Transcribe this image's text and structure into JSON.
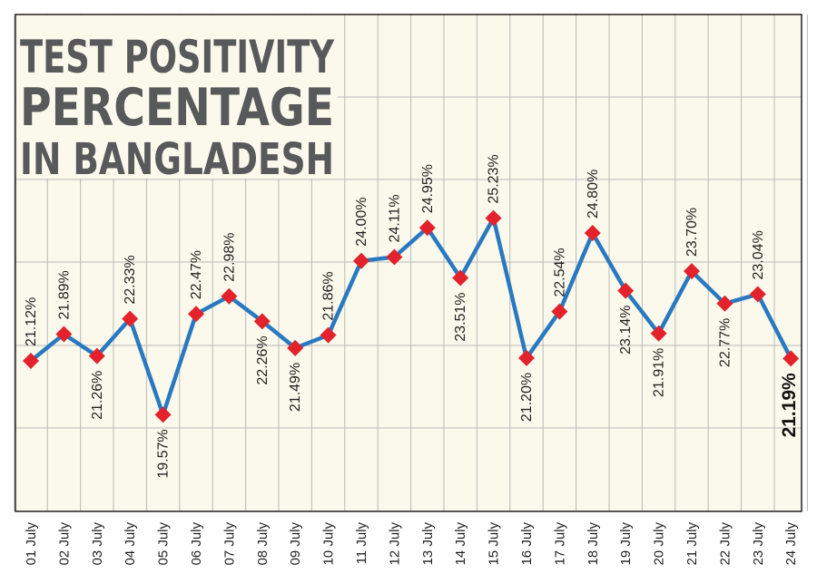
{
  "chart_data": {
    "type": "line",
    "title": [
      "TEST POSITIVITY",
      "PERCENTAGE",
      "IN BANGLADESH"
    ],
    "xlabel": "",
    "ylabel": "",
    "categories": [
      "01 July",
      "02 July",
      "03 July",
      "04 July",
      "05 July",
      "06 July",
      "07 July",
      "08 July",
      "09 July",
      "10 July",
      "11 July",
      "12 July",
      "13 July",
      "14 July",
      "15 July",
      "16 July",
      "17 July",
      "18 July",
      "19 July",
      "20 July",
      "21 July",
      "22 July",
      "23 July",
      "24 July"
    ],
    "series": [
      {
        "values": [
          21.12,
          21.89,
          21.26,
          22.33,
          19.57,
          22.47,
          22.98,
          22.26,
          21.49,
          21.86,
          24.0,
          24.11,
          24.95,
          23.51,
          25.23,
          21.2,
          22.54,
          24.8,
          23.14,
          21.91,
          23.7,
          22.77,
          23.04,
          21.19
        ],
        "labels": [
          "21.12%",
          "21.89%",
          "21.26%",
          "22.33%",
          "19.57%",
          "22.47%",
          "22.98%",
          "22.26%",
          "21.49%",
          "21.86%",
          "24.00%",
          "24.11%",
          "24.95%",
          "23.51%",
          "25.23%",
          "21.20%",
          "22.54%",
          "24.80%",
          "23.14%",
          "21.91%",
          "23.70%",
          "22.77%",
          "23.04%",
          "21.19%"
        ],
        "label_positions": [
          "above",
          "above",
          "below",
          "above",
          "below",
          "above",
          "above",
          "below",
          "below",
          "above",
          "above",
          "above",
          "above",
          "below",
          "above",
          "below",
          "above",
          "above",
          "below",
          "below",
          "above",
          "below",
          "above",
          "below"
        ],
        "emphasized_index": 23
      }
    ],
    "ylim": [
      15,
      30
    ],
    "grid": true,
    "legend": "none",
    "colors": {
      "background": "#fbf9ec",
      "grid": "#b9b9b9",
      "frame": "#231f20",
      "line": "#2979c0",
      "marker": "#e3222b",
      "title": "#58595b"
    }
  }
}
